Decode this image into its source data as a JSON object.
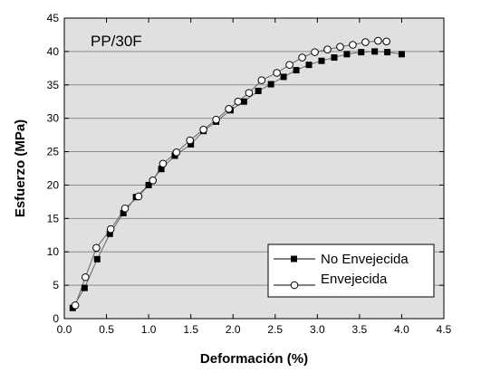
{
  "chart_data": {
    "type": "line",
    "annotation": "PP/30F",
    "xlabel": "Deformación (%)",
    "ylabel": "Esfuerzo (MPa)",
    "xlim": [
      0,
      4.5
    ],
    "ylim": [
      0,
      45
    ],
    "x_ticks": [
      "0.0",
      "0.5",
      "1.0",
      "1.5",
      "2.0",
      "2.5",
      "3.0",
      "3.5",
      "4.0",
      "4.5"
    ],
    "y_ticks": [
      "0",
      "5",
      "10",
      "15",
      "20",
      "25",
      "30",
      "35",
      "40",
      "45"
    ],
    "grid": "horizontal",
    "background": "#e0e0e0",
    "legend_position": "bottom-right",
    "series": [
      {
        "name": "No Envejecida",
        "marker": "filled-square",
        "color": "#000000",
        "x": [
          0.1,
          0.24,
          0.39,
          0.54,
          0.7,
          0.85,
          1.0,
          1.15,
          1.31,
          1.5,
          1.65,
          1.8,
          1.97,
          2.13,
          2.3,
          2.45,
          2.6,
          2.75,
          2.9,
          3.05,
          3.2,
          3.35,
          3.52,
          3.68,
          3.83,
          4.0
        ],
        "y": [
          1.6,
          4.6,
          8.9,
          12.7,
          15.8,
          18.2,
          20.0,
          22.4,
          24.4,
          26.1,
          28.1,
          29.5,
          31.2,
          32.5,
          34.1,
          35.1,
          36.2,
          37.2,
          38.0,
          38.6,
          39.1,
          39.6,
          39.9,
          40.0,
          39.9,
          39.6
        ]
      },
      {
        "name": "Envejecida",
        "marker": "open-circle",
        "color": "#000000",
        "x": [
          0.13,
          0.25,
          0.38,
          0.55,
          0.72,
          0.88,
          1.05,
          1.17,
          1.33,
          1.49,
          1.65,
          1.8,
          1.95,
          2.06,
          2.19,
          2.34,
          2.52,
          2.67,
          2.82,
          2.97,
          3.12,
          3.27,
          3.42,
          3.57,
          3.72,
          3.82
        ],
        "y": [
          2.0,
          6.2,
          10.6,
          13.4,
          16.5,
          18.3,
          20.7,
          23.2,
          24.9,
          26.7,
          28.3,
          29.8,
          31.4,
          32.5,
          33.8,
          35.7,
          36.8,
          38.0,
          39.1,
          39.9,
          40.3,
          40.7,
          41.0,
          41.4,
          41.6,
          41.5
        ]
      }
    ]
  }
}
